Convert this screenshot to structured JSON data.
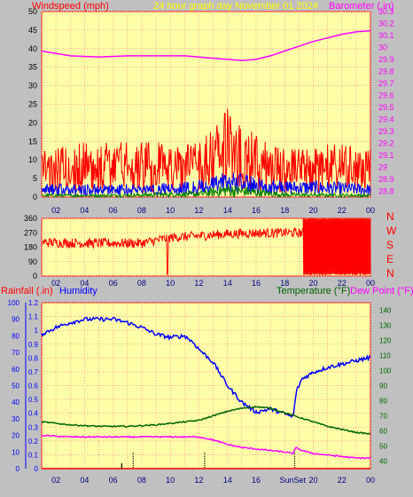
{
  "header": {
    "windspeed_label": "Windspeed (mph)",
    "title": "24 hour graph day   November 01 2024",
    "barometer_label": "Barometer (.in)"
  },
  "colors": {
    "plot_bg": "#ffffa8",
    "frame_bg": "#c0c0c0",
    "grid": "#ff9090",
    "gust": "#ff0000",
    "avg": "#0000ff",
    "calm": "#008000",
    "barometer": "#ff00ff",
    "wind_dir": "#ff0000",
    "humidity": "#0000ff",
    "temperature": "#006400",
    "dewpoint": "#ff00ff",
    "rain": "#ff0000",
    "title_text": "#ffff00",
    "sun_marker": "#000000"
  },
  "chart_data": [
    {
      "type": "line",
      "name": "wind-barometer",
      "x_ticks": [
        "02",
        "04",
        "06",
        "08",
        "10",
        "12",
        "14",
        "16",
        "18",
        "20",
        "22",
        "00"
      ],
      "xlim": [
        1,
        24
      ],
      "y_left": {
        "label": "Windspeed (mph)",
        "ylim": [
          0,
          50
        ],
        "ticks": [
          "0",
          "5",
          "10",
          "15",
          "20",
          "25",
          "30",
          "35",
          "40",
          "45",
          "50"
        ]
      },
      "y_right": {
        "label": "Barometer (.in)",
        "ylim": [
          28.75,
          30.3
        ],
        "ticks": [
          "28.8",
          "28.9",
          "29",
          "29.1",
          "29.2",
          "29.3",
          "29.4",
          "29.5",
          "29.6",
          "29.7",
          "29.8",
          "29.9",
          "30",
          "30.1",
          "30.2",
          "30.3"
        ]
      },
      "barometer": {
        "x": [
          1,
          3,
          5,
          7,
          9,
          11,
          13,
          14,
          15,
          16,
          17,
          18,
          19,
          20,
          21,
          22,
          23,
          24
        ],
        "y": [
          29.97,
          29.93,
          29.92,
          29.93,
          29.93,
          29.93,
          29.91,
          29.9,
          29.89,
          29.9,
          29.93,
          29.97,
          30.01,
          30.05,
          30.08,
          30.11,
          30.13,
          30.14
        ]
      },
      "gust_profile": {
        "x": [
          1,
          4,
          8,
          12,
          13,
          14,
          15,
          16,
          17,
          19,
          21,
          24
        ],
        "y": [
          7,
          8,
          8,
          8,
          10,
          13,
          11,
          9,
          8,
          7,
          8,
          7
        ]
      },
      "avg_profile": {
        "x": [
          1,
          4,
          8,
          12,
          14,
          16,
          18,
          20,
          24
        ],
        "y": [
          2,
          2,
          2,
          2.5,
          4,
          3,
          2.5,
          2.5,
          2
        ]
      },
      "calm_profile": {
        "x": [
          1,
          6,
          12,
          14,
          16,
          18,
          24
        ],
        "y": [
          0.4,
          0.4,
          0.8,
          1.8,
          1.2,
          0.6,
          0.4
        ]
      }
    },
    {
      "type": "line",
      "name": "wind-direction",
      "x_ticks": [
        "02",
        "04",
        "06",
        "08",
        "10",
        "12",
        "14",
        "16",
        "18",
        "20",
        "22",
        "00"
      ],
      "xlim": [
        1,
        24
      ],
      "y_left": {
        "ylim": [
          0,
          360
        ],
        "ticks": [
          "0",
          "90",
          "180",
          "270",
          "360"
        ]
      },
      "y_right": {
        "ticks": [
          "N",
          "W",
          "S",
          "E",
          "N"
        ]
      },
      "direction_profile": {
        "x": [
          1,
          4,
          8,
          10,
          12,
          14,
          16,
          18,
          19.3
        ],
        "y": [
          210,
          205,
          205,
          240,
          250,
          262,
          268,
          270,
          270
        ]
      },
      "spike": {
        "x": 9.8,
        "y": 10
      }
    },
    {
      "type": "line",
      "name": "rain-humidity-temperature",
      "labels": {
        "rain": "Rainfall (.in)",
        "humidity": "Humidity",
        "temperature": "Temperature (°F)",
        "dewpoint": "Dew Point (°F)"
      },
      "x_ticks": [
        "02",
        "04",
        "06",
        "08",
        "10",
        "12",
        "14",
        "16",
        "18",
        "20",
        "22",
        "00"
      ],
      "xlim": [
        1,
        24
      ],
      "sun_labels": {
        "rise": "Sun",
        "set": "Set"
      },
      "sunrise_x": 18.7,
      "sunset_x": 19.2,
      "dotted_markers_x": [
        7.4,
        12.4
      ],
      "small_tick_x": [
        6.6
      ],
      "y_humidity": {
        "ylim": [
          0,
          100
        ],
        "ticks": [
          "0",
          "10",
          "20",
          "30",
          "40",
          "50",
          "60",
          "70",
          "80",
          "90",
          "100"
        ]
      },
      "y_rain": {
        "ylim": [
          0,
          1.2
        ],
        "ticks": [
          "0",
          "0.1",
          "0.2",
          "0.3",
          "0.4",
          "0.5",
          "0.6",
          "0.7",
          "0.8",
          "0.9",
          "1",
          "1.1",
          "1.2"
        ]
      },
      "y_temp": {
        "ylim": [
          35,
          145
        ],
        "ticks": [
          "40",
          "50",
          "60",
          "70",
          "80",
          "90",
          "100",
          "110",
          "120",
          "130",
          "140"
        ]
      },
      "rainfall": {
        "x": [
          1,
          24
        ],
        "y": [
          0,
          0
        ]
      },
      "humidity": {
        "x": [
          1,
          2,
          3,
          4,
          5,
          6,
          7,
          8,
          9,
          10,
          11,
          11.6,
          12,
          13,
          14,
          15,
          16,
          17,
          18,
          18.6,
          18.8,
          19.2,
          20,
          21,
          22,
          23,
          24
        ],
        "y": [
          81,
          85,
          88,
          90,
          90,
          90,
          88,
          85,
          81,
          79,
          80,
          76,
          72,
          64,
          50,
          40,
          34,
          36,
          33,
          31,
          46,
          54,
          58,
          61,
          63,
          65,
          67
        ]
      },
      "temperature": {
        "x": [
          1,
          3,
          5,
          7,
          9,
          11,
          12,
          13,
          14,
          15,
          16,
          17,
          18,
          19,
          20,
          21,
          22,
          23,
          24
        ],
        "y": [
          66,
          64,
          63,
          63,
          64,
          66,
          67,
          70,
          73,
          75,
          76,
          75,
          72,
          69,
          66,
          63,
          61,
          59,
          58
        ]
      },
      "dewpoint": {
        "x": [
          1,
          3,
          5,
          7,
          9,
          11,
          12,
          13,
          14,
          15,
          16,
          17,
          18,
          18.6,
          18.8,
          19.2,
          20,
          21,
          22,
          23,
          24
        ],
        "y": [
          57,
          56,
          56,
          56,
          56,
          56,
          56,
          54,
          51,
          49,
          48,
          47,
          46,
          45,
          49,
          47,
          45,
          44,
          43,
          42,
          42
        ]
      }
    }
  ]
}
